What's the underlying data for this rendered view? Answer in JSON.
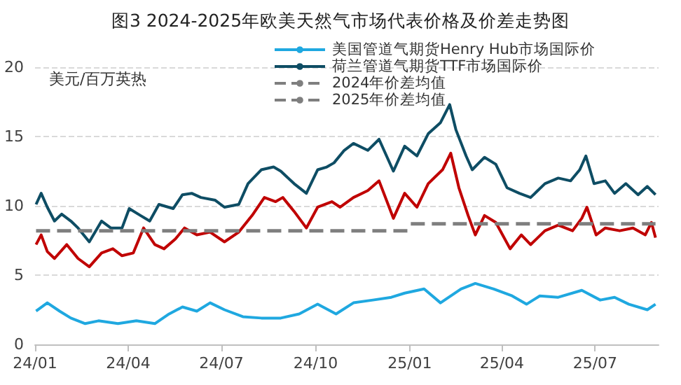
{
  "chart_data": {
    "type": "line",
    "title": "图3 2024-2025年欧美天然气市场代表价格及价差走势图",
    "ylabel": "美元/百万英热",
    "xlim": [
      "2024-01-01",
      "2025-09-01"
    ],
    "xticks": [
      {
        "value": "2024-01-01",
        "label": "24/01"
      },
      {
        "value": "2024-04-01",
        "label": "24/04"
      },
      {
        "value": "2024-07-01",
        "label": "24/07"
      },
      {
        "value": "2024-10-01",
        "label": "24/10"
      },
      {
        "value": "2025-01-01",
        "label": "25/01"
      },
      {
        "value": "2025-04-01",
        "label": "25/04"
      },
      {
        "value": "2025-07-01",
        "label": "25/07"
      }
    ],
    "ylim": [
      0,
      20
    ],
    "yticks": [
      0,
      5,
      10,
      15,
      20
    ],
    "grid": "y",
    "legend": "top right",
    "marker": "none",
    "series": [
      {
        "name": "美国管道气期货Henry Hub市场国际价",
        "color": "#1fa8e0",
        "x": [
          "2024-01-02",
          "2024-01-13",
          "2024-01-25",
          "2024-02-05",
          "2024-02-19",
          "2024-03-03",
          "2024-03-22",
          "2024-04-09",
          "2024-04-27",
          "2024-05-11",
          "2024-05-24",
          "2024-06-07",
          "2024-06-20",
          "2024-07-04",
          "2024-07-22",
          "2024-08-09",
          "2024-08-28",
          "2024-09-15",
          "2024-10-03",
          "2024-10-21",
          "2024-11-07",
          "2024-11-26",
          "2024-12-14",
          "2024-12-27",
          "2025-01-15",
          "2025-01-31",
          "2025-02-20",
          "2025-03-06",
          "2025-03-24",
          "2025-04-11",
          "2025-04-25",
          "2025-05-08",
          "2025-05-26",
          "2025-06-18",
          "2025-07-06",
          "2025-07-20",
          "2025-08-03",
          "2025-08-21",
          "2025-08-29"
        ],
        "values": [
          2.4,
          3.0,
          2.4,
          1.9,
          1.5,
          1.7,
          1.5,
          1.7,
          1.5,
          2.2,
          2.7,
          2.4,
          3.0,
          2.5,
          2.0,
          1.9,
          1.9,
          2.2,
          2.9,
          2.2,
          3.0,
          3.2,
          3.4,
          3.7,
          4.0,
          3.0,
          4.0,
          4.4,
          4.0,
          3.5,
          2.9,
          3.5,
          3.4,
          3.9,
          3.2,
          3.4,
          2.9,
          2.5,
          2.9
        ]
      },
      {
        "name": "荷兰管道气期货TTF市场国际价",
        "color": "#0e4d64",
        "x": [
          "2024-01-02",
          "2024-01-07",
          "2024-01-13",
          "2024-01-20",
          "2024-01-27",
          "2024-02-05",
          "2024-02-12",
          "2024-02-23",
          "2024-03-06",
          "2024-03-15",
          "2024-03-26",
          "2024-04-02",
          "2024-04-13",
          "2024-04-22",
          "2024-05-01",
          "2024-05-15",
          "2024-05-24",
          "2024-06-02",
          "2024-06-11",
          "2024-06-25",
          "2024-07-04",
          "2024-07-18",
          "2024-07-27",
          "2024-08-09",
          "2024-08-21",
          "2024-08-28",
          "2024-09-10",
          "2024-09-22",
          "2024-10-03",
          "2024-10-12",
          "2024-10-19",
          "2024-10-29",
          "2024-11-07",
          "2024-11-21",
          "2024-12-02",
          "2024-12-16",
          "2024-12-27",
          "2025-01-08",
          "2025-01-19",
          "2025-01-31",
          "2025-02-09",
          "2025-02-15",
          "2025-02-25",
          "2025-03-03",
          "2025-03-15",
          "2025-03-26",
          "2025-04-06",
          "2025-04-18",
          "2025-04-29",
          "2025-05-13",
          "2025-05-26",
          "2025-06-07",
          "2025-06-16",
          "2025-06-22",
          "2025-06-30",
          "2025-07-11",
          "2025-07-20",
          "2025-07-31",
          "2025-08-12",
          "2025-08-21",
          "2025-08-29"
        ],
        "values": [
          10.1,
          10.9,
          9.9,
          8.9,
          9.4,
          8.9,
          8.4,
          7.4,
          8.9,
          8.4,
          8.4,
          9.8,
          9.3,
          8.9,
          10.1,
          9.8,
          10.8,
          10.9,
          10.6,
          10.4,
          9.9,
          10.1,
          11.6,
          12.6,
          12.8,
          12.5,
          11.6,
          10.9,
          12.6,
          12.8,
          13.1,
          14.0,
          14.5,
          14.0,
          14.8,
          12.5,
          14.3,
          13.6,
          15.2,
          16.0,
          17.3,
          15.5,
          13.6,
          12.6,
          13.5,
          13.0,
          11.3,
          10.9,
          10.6,
          11.6,
          12.0,
          11.8,
          12.6,
          13.6,
          11.6,
          11.8,
          10.9,
          11.6,
          10.8,
          11.4,
          10.8
        ]
      },
      {
        "color": "#c00000",
        "x": [
          "2024-01-02",
          "2024-01-07",
          "2024-01-13",
          "2024-01-20",
          "2024-02-01",
          "2024-02-12",
          "2024-02-23",
          "2024-03-06",
          "2024-03-17",
          "2024-03-26",
          "2024-04-06",
          "2024-04-16",
          "2024-04-27",
          "2024-05-06",
          "2024-05-17",
          "2024-05-26",
          "2024-06-07",
          "2024-06-20",
          "2024-07-04",
          "2024-07-18",
          "2024-07-31",
          "2024-08-12",
          "2024-08-23",
          "2024-08-30",
          "2024-09-10",
          "2024-09-22",
          "2024-10-03",
          "2024-10-17",
          "2024-10-25",
          "2024-11-07",
          "2024-11-21",
          "2024-12-02",
          "2024-12-16",
          "2024-12-27",
          "2025-01-08",
          "2025-01-19",
          "2025-02-02",
          "2025-02-10",
          "2025-02-18",
          "2025-02-27",
          "2025-03-06",
          "2025-03-15",
          "2025-03-26",
          "2025-04-09",
          "2025-04-20",
          "2025-04-29",
          "2025-05-13",
          "2025-05-26",
          "2025-06-09",
          "2025-06-18",
          "2025-06-23",
          "2025-07-02",
          "2025-07-11",
          "2025-07-25",
          "2025-08-07",
          "2025-08-19",
          "2025-08-25",
          "2025-08-29"
        ],
        "values": [
          7.2,
          7.9,
          6.7,
          6.2,
          7.2,
          6.2,
          5.6,
          6.6,
          6.9,
          6.4,
          6.6,
          8.4,
          7.2,
          6.9,
          7.6,
          8.4,
          7.9,
          8.1,
          7.4,
          8.1,
          9.3,
          10.6,
          10.3,
          10.6,
          9.6,
          8.4,
          9.9,
          10.3,
          9.9,
          10.6,
          11.1,
          11.8,
          9.1,
          10.9,
          9.9,
          11.6,
          12.6,
          13.8,
          11.3,
          9.3,
          7.9,
          9.3,
          8.8,
          6.9,
          7.9,
          7.2,
          8.2,
          8.6,
          8.2,
          9.1,
          9.9,
          7.9,
          8.4,
          8.2,
          8.4,
          7.9,
          8.8,
          7.7
        ]
      },
      {
        "name": "2024年价差均值",
        "type": "line",
        "color": "#7f7f7f",
        "line_style": "dashed",
        "x": [
          "2024-01-02",
          "2024-12-31"
        ],
        "values": [
          8.2,
          8.2
        ]
      },
      {
        "name": "2025年价差均值",
        "type": "line",
        "color": "#7f7f7f",
        "line_style": "dashed",
        "x": [
          "2025-01-02",
          "2025-08-29"
        ],
        "values": [
          8.7,
          8.7
        ]
      }
    ]
  }
}
